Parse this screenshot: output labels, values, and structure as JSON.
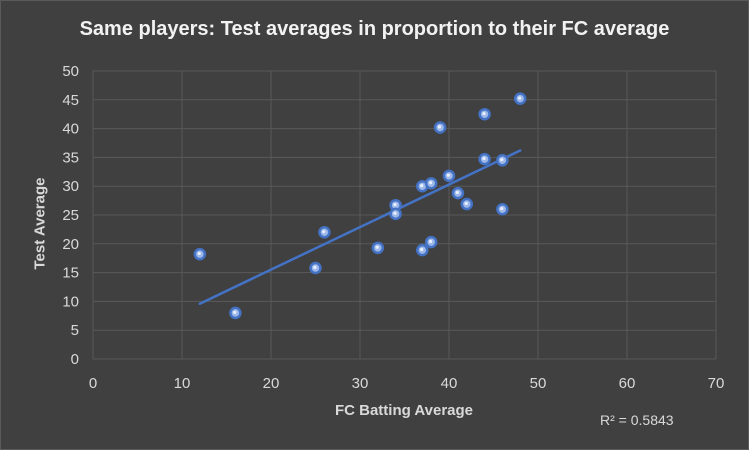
{
  "chart_data": {
    "type": "scatter",
    "title": "Same players: Test averages in proportion to their FC average",
    "xlabel": "FC Batting Average",
    "ylabel": "Test Average",
    "xlim": [
      0,
      70
    ],
    "ylim": [
      0,
      50
    ],
    "x_ticks": [
      0,
      10,
      20,
      30,
      40,
      50,
      60,
      70
    ],
    "y_ticks": [
      0,
      5,
      10,
      15,
      20,
      25,
      30,
      35,
      40,
      45,
      50
    ],
    "grid": true,
    "legend": "none",
    "r_squared_label": "R² = 0.5843",
    "series": [
      {
        "points": [
          {
            "x": 12,
            "y": 18.2
          },
          {
            "x": 16,
            "y": 8.0
          },
          {
            "x": 25,
            "y": 15.8
          },
          {
            "x": 26,
            "y": 22.0
          },
          {
            "x": 32,
            "y": 19.3
          },
          {
            "x": 34,
            "y": 26.7
          },
          {
            "x": 34,
            "y": 25.2
          },
          {
            "x": 37,
            "y": 30.0
          },
          {
            "x": 37,
            "y": 18.9
          },
          {
            "x": 38,
            "y": 30.5
          },
          {
            "x": 38,
            "y": 20.3
          },
          {
            "x": 39,
            "y": 40.2
          },
          {
            "x": 40,
            "y": 31.8
          },
          {
            "x": 41,
            "y": 28.8
          },
          {
            "x": 42,
            "y": 26.9
          },
          {
            "x": 44,
            "y": 42.5
          },
          {
            "x": 44,
            "y": 34.7
          },
          {
            "x": 46,
            "y": 34.5
          },
          {
            "x": 46,
            "y": 26.0
          },
          {
            "x": 48,
            "y": 45.2
          }
        ]
      }
    ],
    "trendline": {
      "type": "linear",
      "from": {
        "x": 12,
        "y": 9.6
      },
      "to": {
        "x": 48,
        "y": 36.2
      }
    },
    "colors": {
      "background": "#404040",
      "grid": "#595959",
      "marker": "#4472c4",
      "trendline": "#4472c4",
      "text": "#d9d9d9",
      "title": "#f2f2f2"
    }
  }
}
